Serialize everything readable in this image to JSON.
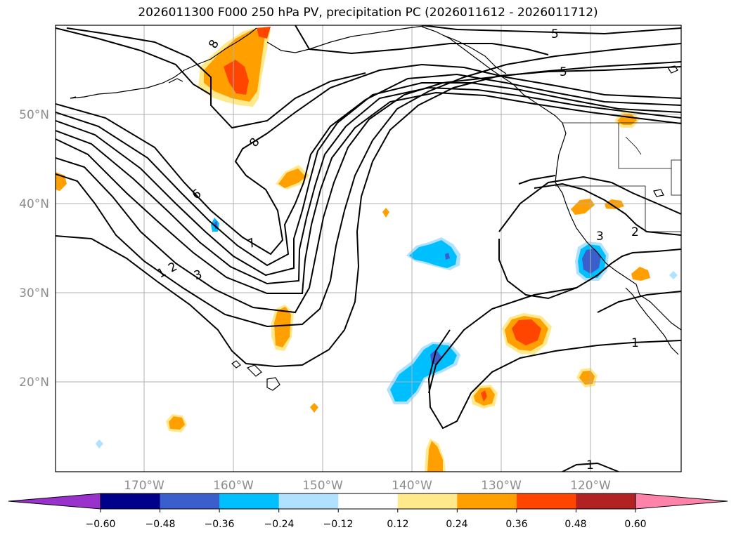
{
  "title": "2026011300 F000 250 hPa PV, precipitation PC (2026011612 - 2026011712)",
  "map": {
    "lat_labels": [
      "50°N",
      "40°N",
      "30°N",
      "20°N"
    ],
    "lon_labels": [
      "170°W",
      "160°W",
      "150°W",
      "140°W",
      "130°W",
      "120°W"
    ],
    "contour_labels": [
      "8",
      "8",
      "6",
      "7",
      "1",
      "2",
      "3",
      "5",
      "5",
      "3",
      "2",
      "1",
      "1"
    ],
    "colors": {
      "orange": "#ff9f00",
      "red_orange": "#ff4500",
      "light_yellow": "#ffe98a",
      "deep_sky_blue": "#00bfff",
      "light_blue": "#b0e2ff",
      "royal_blue": "#3a5fcd"
    }
  },
  "colorbar": {
    "tick_labels": [
      "−0.60",
      "−0.48",
      "−0.36",
      "−0.24",
      "−0.12",
      "0.12",
      "0.24",
      "0.36",
      "0.48",
      "0.60"
    ],
    "colors": [
      "#9932cc",
      "#00008b",
      "#3a5fcd",
      "#00bfff",
      "#b0e2ff",
      "#ffffff",
      "#ffe98a",
      "#ff9f00",
      "#ff4500",
      "#b22222",
      "#ff82ab",
      "#ff82ab"
    ]
  }
}
